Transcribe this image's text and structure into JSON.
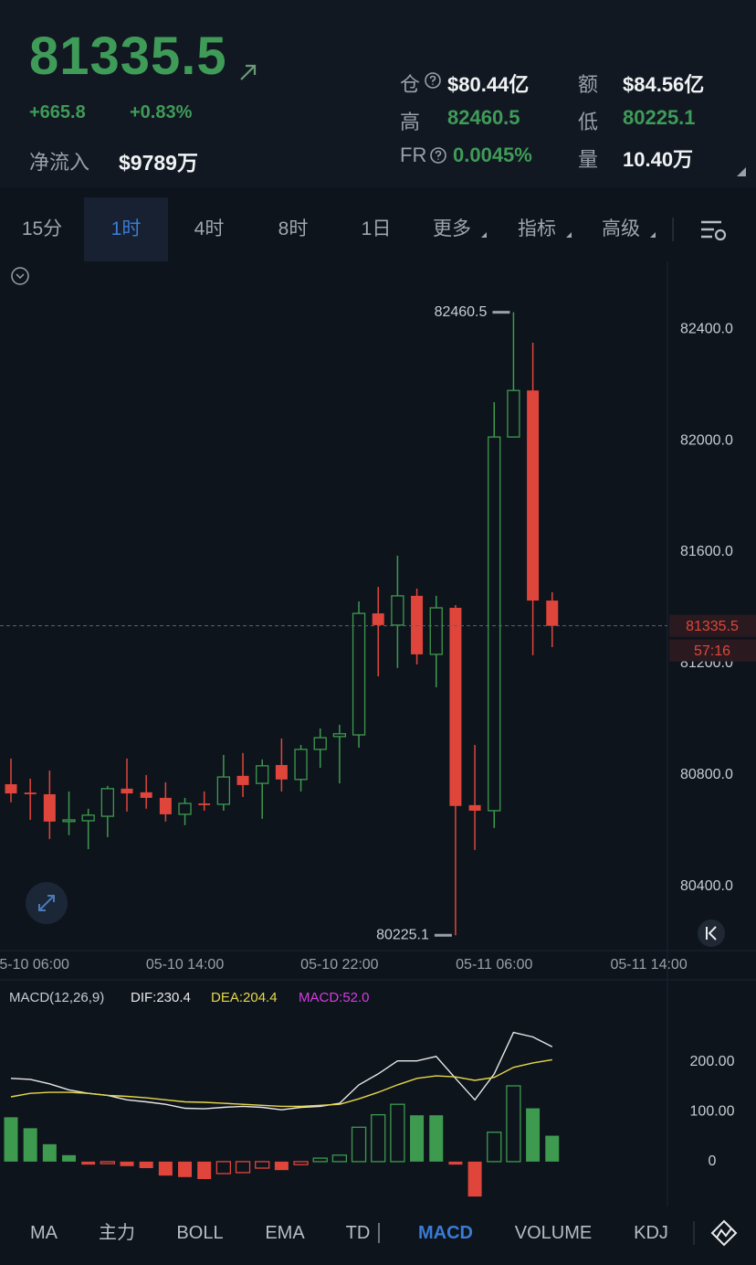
{
  "header": {
    "price": "81335.5",
    "change": "+665.8",
    "change_pct": "+0.83%",
    "netflow_label": "净流入",
    "netflow_value": "$9789万",
    "stats": [
      {
        "label": "仓",
        "value": "$80.44亿"
      },
      {
        "label": "额",
        "value": "$84.56亿"
      },
      {
        "label": "高",
        "value": "82460.5"
      },
      {
        "label": "低",
        "value": "80225.1"
      },
      {
        "label": "FR",
        "value": "0.0045%"
      },
      {
        "label": "量",
        "value": "10.40万"
      }
    ]
  },
  "tabs": [
    "15分",
    "1时",
    "4时",
    "8时",
    "1日",
    "更多",
    "指标",
    "高级"
  ],
  "active_tab": 1,
  "toolbar": [
    "MA",
    "主力",
    "BOLL",
    "EMA",
    "TD",
    "MACD",
    "VOLUME",
    "KDJ"
  ],
  "active_tool": 5,
  "chart_data": [
    {
      "type": "candlestick",
      "categories": [
        null,
        "05-10 06:00",
        null,
        null,
        null,
        null,
        null,
        null,
        null,
        "05-10 14:00",
        null,
        null,
        null,
        null,
        null,
        null,
        null,
        "05-10 22:00",
        null,
        null,
        null,
        null,
        null,
        null,
        null,
        "05-11 06:00",
        null,
        null,
        null,
        null,
        null,
        null,
        null,
        "05-11 14:00"
      ],
      "open": [
        80767,
        80737,
        80731,
        80633,
        80636,
        80652,
        80751,
        80738,
        80718,
        80659,
        80698,
        80695,
        80797,
        80770,
        80836,
        80784,
        80892,
        80938,
        80944,
        81380,
        81338,
        81443,
        81233,
        81400,
        80692,
        80672,
        82013,
        82180,
        81426,
        null,
        null,
        null,
        null,
        null
      ],
      "high": [
        80859,
        80787,
        80816,
        80741,
        80679,
        80761,
        80859,
        80800,
        80774,
        80718,
        80741,
        80872,
        80879,
        80856,
        80931,
        80908,
        80967,
        80980,
        81423,
        81475,
        81587,
        81469,
        81443,
        81410,
        80908,
        82138,
        82460.5,
        82351,
        81456,
        null,
        null,
        null,
        null,
        null
      ],
      "low": [
        80702,
        80639,
        80570,
        80584,
        80534,
        80577,
        80669,
        80679,
        80633,
        80620,
        80672,
        80672,
        80721,
        80643,
        80741,
        80741,
        80826,
        80770,
        80898,
        81154,
        81184,
        81197,
        81115,
        80225.1,
        80531,
        80610,
        82013,
        81230,
        81259,
        null,
        null,
        null,
        null,
        null
      ],
      "close": [
        80734,
        80731,
        80633,
        80639,
        80656,
        80751,
        80734,
        80718,
        80659,
        80698,
        80692,
        80793,
        80764,
        80833,
        80784,
        80892,
        80934,
        80948,
        81380,
        81338,
        81443,
        81233,
        81400,
        80689,
        80672,
        82013,
        82180,
        81426,
        81335.5,
        null,
        null,
        null,
        null,
        null
      ],
      "up_color": "#3d9a4f",
      "down_color": "#e0453b",
      "ylim": [
        80170,
        82630
      ],
      "yticks": [
        {
          "value": 80400,
          "label": "80400.0"
        },
        {
          "value": 80800,
          "label": "80800.0"
        },
        {
          "value": 81200,
          "label": "81200.0"
        },
        {
          "value": 81600,
          "label": "81600.0"
        },
        {
          "value": 82000,
          "label": "82000.0"
        },
        {
          "value": 82400,
          "label": "82400.0"
        }
      ],
      "countdown": "57:16"
    },
    {
      "type": "macd",
      "title": "MACD(12,26,9)",
      "series": [
        {
          "name": "DIF:230.4",
          "color": "#e8e8e8",
          "values": [
            167,
            165,
            156,
            144,
            137,
            133,
            124,
            120,
            115,
            107,
            106,
            109,
            111,
            109,
            104,
            109,
            111,
            117,
            154,
            176,
            202,
            202,
            211,
            167,
            124,
            176,
            259,
            250,
            230.4
          ]
        },
        {
          "name": "DEA:204.4",
          "color": "#e6d84a",
          "values": [
            130,
            137,
            139,
            139,
            137,
            133,
            131,
            128,
            124,
            120,
            119,
            117,
            115,
            113,
            111,
            111,
            113,
            115,
            126,
            139,
            154,
            167,
            172,
            170,
            163,
            169,
            189,
            198,
            204.4
          ]
        },
        {
          "name": "MACD:52.0",
          "color": "#d53ce0",
          "values": [
            89,
            67,
            35,
            13,
            -6,
            -4,
            -9,
            -13,
            -28,
            -31,
            -35,
            -24,
            -22,
            -13,
            -17,
            -6,
            7,
            13,
            69,
            94,
            115,
            93,
            93,
            -6,
            -70,
            59,
            152,
            107,
            52
          ]
        }
      ],
      "up_color": "#3d9a4f",
      "down_color": "#e0453b",
      "ylim": [
        -90,
        350
      ],
      "yticks": [
        {
          "value": 200,
          "label": "200.00"
        },
        {
          "value": 100,
          "label": "100.00"
        },
        0
      ]
    }
  ]
}
